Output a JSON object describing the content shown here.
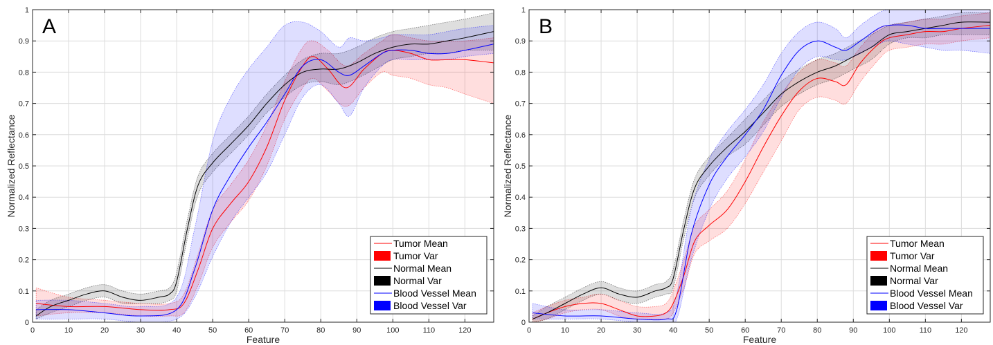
{
  "chart_data": [
    {
      "type": "line",
      "panel_label": "A",
      "xlabel": "Feature",
      "ylabel": "Normalized Reflectance",
      "xlim": [
        0,
        128
      ],
      "ylim": [
        0,
        1
      ],
      "xticks": [
        0,
        10,
        20,
        30,
        40,
        50,
        60,
        70,
        80,
        90,
        100,
        110,
        120
      ],
      "yticks": [
        0,
        0.1,
        0.2,
        0.3,
        0.4,
        0.5,
        0.6,
        0.7,
        0.8,
        0.9,
        1
      ],
      "grid": true,
      "legend_position": "bottom-right",
      "legend": [
        "Tumor Mean",
        "Tumor Var",
        "Normal Mean",
        "Normal Var",
        "Blood Vessel Mean",
        "Blood Vessel Var"
      ],
      "colors": {
        "tumor": "#ff0000",
        "normal": "#000000",
        "vessel": "#0000ff"
      },
      "series": [
        {
          "name": "Tumor",
          "x": [
            1,
            10,
            20,
            30,
            38,
            42,
            46,
            50,
            55,
            60,
            65,
            70,
            75,
            78,
            82,
            87,
            92,
            97,
            100,
            105,
            110,
            115,
            120,
            128
          ],
          "mean": [
            0.06,
            0.05,
            0.05,
            0.04,
            0.04,
            0.06,
            0.17,
            0.3,
            0.38,
            0.45,
            0.56,
            0.71,
            0.82,
            0.85,
            0.81,
            0.75,
            0.81,
            0.86,
            0.87,
            0.86,
            0.84,
            0.84,
            0.84,
            0.83
          ],
          "lower": [
            0.02,
            0.03,
            0.03,
            0.02,
            0.02,
            0.03,
            0.12,
            0.24,
            0.32,
            0.39,
            0.5,
            0.65,
            0.75,
            0.78,
            0.74,
            0.69,
            0.75,
            0.8,
            0.79,
            0.78,
            0.76,
            0.75,
            0.73,
            0.7
          ],
          "upper": [
            0.11,
            0.08,
            0.07,
            0.06,
            0.06,
            0.09,
            0.22,
            0.36,
            0.44,
            0.52,
            0.63,
            0.77,
            0.88,
            0.9,
            0.87,
            0.82,
            0.86,
            0.9,
            0.92,
            0.91,
            0.9,
            0.9,
            0.9,
            0.91
          ]
        },
        {
          "name": "Normal",
          "x": [
            1,
            5,
            10,
            15,
            20,
            25,
            30,
            35,
            38,
            40,
            43,
            46,
            50,
            55,
            60,
            65,
            70,
            75,
            80,
            85,
            90,
            95,
            100,
            105,
            110,
            115,
            120,
            128
          ],
          "mean": [
            0.02,
            0.05,
            0.07,
            0.09,
            0.1,
            0.08,
            0.07,
            0.08,
            0.09,
            0.13,
            0.3,
            0.44,
            0.51,
            0.57,
            0.63,
            0.7,
            0.76,
            0.8,
            0.81,
            0.81,
            0.83,
            0.86,
            0.88,
            0.89,
            0.89,
            0.9,
            0.91,
            0.93
          ],
          "lower": [
            0.01,
            0.03,
            0.05,
            0.07,
            0.08,
            0.06,
            0.06,
            0.06,
            0.07,
            0.1,
            0.27,
            0.41,
            0.48,
            0.54,
            0.6,
            0.67,
            0.72,
            0.76,
            0.77,
            0.76,
            0.78,
            0.81,
            0.84,
            0.85,
            0.86,
            0.86,
            0.87,
            0.87
          ],
          "upper": [
            0.04,
            0.07,
            0.09,
            0.11,
            0.12,
            0.1,
            0.09,
            0.1,
            0.11,
            0.16,
            0.33,
            0.47,
            0.54,
            0.6,
            0.66,
            0.73,
            0.79,
            0.84,
            0.86,
            0.86,
            0.88,
            0.91,
            0.93,
            0.94,
            0.95,
            0.96,
            0.97,
            0.99
          ]
        },
        {
          "name": "Blood Vessel",
          "x": [
            1,
            10,
            20,
            30,
            40,
            45,
            50,
            55,
            60,
            65,
            70,
            75,
            80,
            85,
            88,
            92,
            97,
            100,
            105,
            110,
            115,
            120,
            128
          ],
          "mean": [
            0.04,
            0.04,
            0.03,
            0.02,
            0.04,
            0.17,
            0.36,
            0.47,
            0.56,
            0.64,
            0.73,
            0.82,
            0.84,
            0.8,
            0.79,
            0.82,
            0.86,
            0.87,
            0.87,
            0.86,
            0.86,
            0.87,
            0.89
          ],
          "lower": [
            0.01,
            0.01,
            0.01,
            0.0,
            0.01,
            0.08,
            0.21,
            0.32,
            0.4,
            0.48,
            0.6,
            0.72,
            0.76,
            0.7,
            0.66,
            0.75,
            0.82,
            0.84,
            0.84,
            0.84,
            0.84,
            0.85,
            0.86
          ],
          "upper": [
            0.07,
            0.07,
            0.06,
            0.05,
            0.08,
            0.3,
            0.58,
            0.72,
            0.81,
            0.88,
            0.95,
            0.96,
            0.93,
            0.88,
            0.91,
            0.9,
            0.91,
            0.92,
            0.92,
            0.92,
            0.93,
            0.94,
            0.95
          ]
        }
      ]
    },
    {
      "type": "line",
      "panel_label": "B",
      "xlabel": "Feature",
      "ylabel": "Normalized Reflectance",
      "xlim": [
        0,
        128
      ],
      "ylim": [
        0,
        1
      ],
      "xticks": [
        0,
        10,
        20,
        30,
        40,
        50,
        60,
        70,
        80,
        90,
        100,
        110,
        120
      ],
      "yticks": [
        0,
        0.1,
        0.2,
        0.3,
        0.4,
        0.5,
        0.6,
        0.7,
        0.8,
        0.9,
        1
      ],
      "grid": true,
      "legend_position": "bottom-right",
      "legend": [
        "Tumor Mean",
        "Tumor Var",
        "Normal Mean",
        "Normal Var",
        "Blood Vessel Mean",
        "Blood Vessel Var"
      ],
      "colors": {
        "tumor": "#ff0000",
        "normal": "#000000",
        "vessel": "#0000ff"
      },
      "series": [
        {
          "name": "Tumor",
          "x": [
            1,
            5,
            10,
            15,
            20,
            25,
            30,
            35,
            38,
            40,
            43,
            46,
            50,
            55,
            60,
            65,
            70,
            75,
            80,
            85,
            88,
            92,
            97,
            100,
            105,
            110,
            115,
            120,
            128
          ],
          "mean": [
            0.01,
            0.03,
            0.05,
            0.06,
            0.06,
            0.04,
            0.02,
            0.02,
            0.03,
            0.06,
            0.15,
            0.26,
            0.31,
            0.36,
            0.45,
            0.56,
            0.66,
            0.74,
            0.78,
            0.77,
            0.76,
            0.83,
            0.89,
            0.91,
            0.92,
            0.93,
            0.93,
            0.94,
            0.95
          ],
          "lower": [
            0.0,
            0.01,
            0.03,
            0.04,
            0.04,
            0.02,
            0.01,
            0.01,
            0.01,
            0.03,
            0.11,
            0.22,
            0.26,
            0.3,
            0.38,
            0.48,
            0.58,
            0.68,
            0.72,
            0.71,
            0.7,
            0.77,
            0.84,
            0.87,
            0.88,
            0.89,
            0.89,
            0.9,
            0.91
          ],
          "upper": [
            0.03,
            0.05,
            0.07,
            0.08,
            0.09,
            0.07,
            0.05,
            0.05,
            0.06,
            0.1,
            0.2,
            0.31,
            0.36,
            0.42,
            0.52,
            0.64,
            0.73,
            0.8,
            0.84,
            0.83,
            0.82,
            0.88,
            0.94,
            0.95,
            0.96,
            0.97,
            0.97,
            0.98,
            0.99
          ]
        },
        {
          "name": "Normal",
          "x": [
            1,
            5,
            10,
            15,
            20,
            25,
            30,
            35,
            38,
            40,
            43,
            46,
            50,
            55,
            60,
            65,
            70,
            75,
            80,
            85,
            90,
            95,
            100,
            105,
            110,
            115,
            120,
            128
          ],
          "mean": [
            0.01,
            0.03,
            0.06,
            0.09,
            0.11,
            0.09,
            0.08,
            0.1,
            0.11,
            0.14,
            0.3,
            0.43,
            0.5,
            0.56,
            0.61,
            0.67,
            0.73,
            0.77,
            0.8,
            0.82,
            0.85,
            0.88,
            0.92,
            0.93,
            0.94,
            0.95,
            0.96,
            0.96
          ],
          "lower": [
            0.0,
            0.01,
            0.04,
            0.07,
            0.09,
            0.07,
            0.06,
            0.08,
            0.09,
            0.11,
            0.27,
            0.4,
            0.47,
            0.53,
            0.57,
            0.63,
            0.69,
            0.73,
            0.76,
            0.78,
            0.81,
            0.84,
            0.89,
            0.91,
            0.91,
            0.92,
            0.92,
            0.92
          ],
          "upper": [
            0.02,
            0.05,
            0.08,
            0.11,
            0.13,
            0.11,
            0.1,
            0.12,
            0.13,
            0.17,
            0.33,
            0.46,
            0.53,
            0.59,
            0.65,
            0.71,
            0.77,
            0.81,
            0.84,
            0.86,
            0.89,
            0.92,
            0.95,
            0.96,
            0.97,
            0.98,
            0.99,
            0.99
          ]
        },
        {
          "name": "Blood Vessel",
          "x": [
            1,
            10,
            20,
            30,
            38,
            41,
            45,
            50,
            55,
            60,
            65,
            70,
            75,
            80,
            85,
            88,
            92,
            97,
            100,
            105,
            110,
            115,
            120,
            128
          ],
          "mean": [
            0.03,
            0.02,
            0.02,
            0.01,
            0.01,
            0.04,
            0.28,
            0.44,
            0.53,
            0.6,
            0.68,
            0.79,
            0.87,
            0.9,
            0.88,
            0.87,
            0.9,
            0.94,
            0.95,
            0.95,
            0.94,
            0.94,
            0.94,
            0.94
          ],
          "lower": [
            0.01,
            0.01,
            0.01,
            0.0,
            0.0,
            0.01,
            0.2,
            0.36,
            0.46,
            0.53,
            0.61,
            0.72,
            0.81,
            0.85,
            0.84,
            0.84,
            0.86,
            0.89,
            0.9,
            0.89,
            0.88,
            0.87,
            0.87,
            0.86
          ],
          "upper": [
            0.06,
            0.04,
            0.04,
            0.03,
            0.03,
            0.09,
            0.36,
            0.52,
            0.61,
            0.68,
            0.76,
            0.86,
            0.93,
            0.96,
            0.94,
            0.91,
            0.95,
            0.99,
            1.0,
            1.0,
            1.0,
            1.0,
            1.0,
            1.0
          ]
        }
      ]
    }
  ]
}
